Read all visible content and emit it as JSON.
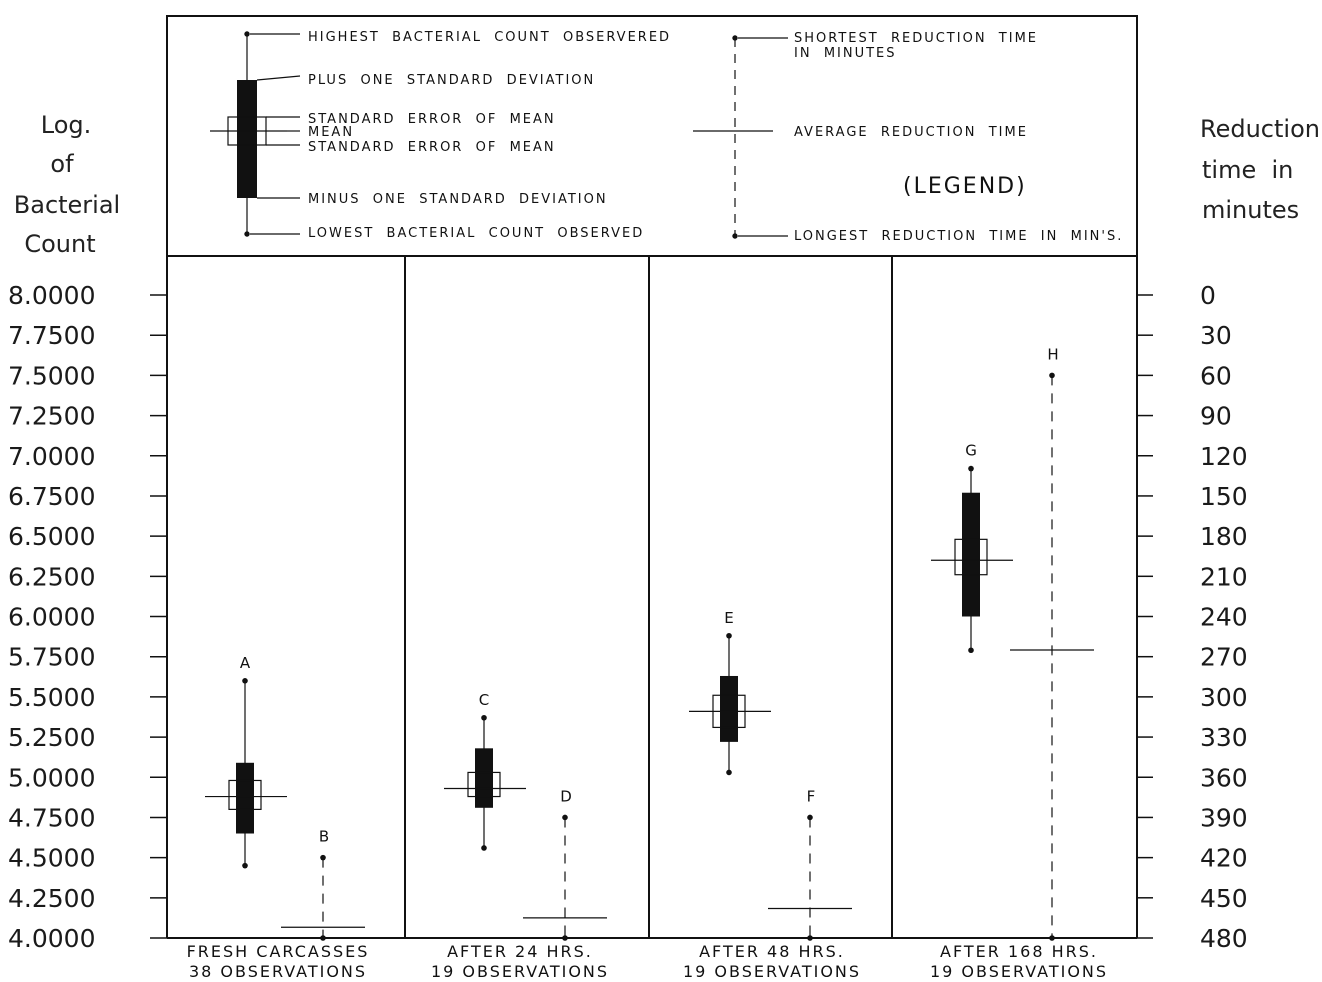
{
  "left_axis_title": [
    "Log.",
    "of",
    "Bacterial",
    "Count"
  ],
  "right_axis_title": [
    "Reduction",
    "time  in",
    "minutes"
  ],
  "legend": {
    "highest": "HIGHEST  BACTERIAL  COUNT  OBSERVERED",
    "plus_sd": "PLUS  ONE  STANDARD  DEVIATION",
    "se_upper": "STANDARD  ERROR  OF  MEAN",
    "mean": "MEAN",
    "se_lower": "STANDARD  ERROR  OF  MEAN",
    "minus_sd": "MINUS  ONE  STANDARD  DEVIATION",
    "lowest": "LOWEST  BACTERIAL  COUNT  OBSERVED",
    "shortest_1": "SHORTEST  REDUCTION  TIME",
    "shortest_2": "IN  MINUTES",
    "average": "AVERAGE  REDUCTION  TIME",
    "legend_word": "(LEGEND)",
    "longest": "LONGEST  REDUCTION  TIME  IN  MIN'S."
  },
  "chart_data": {
    "type": "boxplot",
    "left_axis": {
      "range": [
        4.0,
        8.0
      ],
      "ticks": [
        "8.0000",
        "7.7500",
        "7.5000",
        "7.2500",
        "7.0000",
        "6.7500",
        "6.5000",
        "6.2500",
        "6.0000",
        "5.7500",
        "5.5000",
        "5.2500",
        "5.0000",
        "4.7500",
        "4.5000",
        "4.2500",
        "4.0000"
      ]
    },
    "right_axis": {
      "range": [
        0,
        480
      ],
      "inverted": true,
      "ticks": [
        "0",
        "30",
        "60",
        "90",
        "120",
        "150",
        "180",
        "210",
        "240",
        "270",
        "300",
        "330",
        "360",
        "390",
        "420",
        "450",
        "480"
      ]
    },
    "groups": [
      {
        "label_line1": "FRESH  CARCASSES",
        "label_line2": "38  OBSERVATIONS",
        "bacterial": {
          "marker": "A",
          "max": 5.6,
          "plus_sd": 5.09,
          "se_upper": 4.98,
          "mean": 4.88,
          "se_lower": 4.8,
          "minus_sd": 4.65,
          "min": 4.45
        },
        "reduction": {
          "marker": "B",
          "shortest": 420,
          "average": 472,
          "longest": 480
        }
      },
      {
        "label_line1": "AFTER  24  HRS.",
        "label_line2": "19  OBSERVATIONS",
        "bacterial": {
          "marker": "C",
          "max": 5.37,
          "plus_sd": 5.18,
          "se_upper": 5.03,
          "mean": 4.93,
          "se_lower": 4.88,
          "minus_sd": 4.81,
          "min": 4.56
        },
        "reduction": {
          "marker": "D",
          "shortest": 390,
          "average": 465,
          "longest": 480
        }
      },
      {
        "label_line1": "AFTER  48  HRS.",
        "label_line2": "19  OBSERVATIONS",
        "bacterial": {
          "marker": "E",
          "max": 5.88,
          "plus_sd": 5.63,
          "se_upper": 5.51,
          "mean": 5.41,
          "se_lower": 5.31,
          "minus_sd": 5.22,
          "min": 5.03
        },
        "reduction": {
          "marker": "F",
          "shortest": 390,
          "average": 458,
          "longest": 480
        }
      },
      {
        "label_line1": "AFTER  168  HRS.",
        "label_line2": "19  OBSERVATIONS",
        "bacterial": {
          "marker": "G",
          "max": 6.92,
          "plus_sd": 6.77,
          "se_upper": 6.48,
          "mean": 6.35,
          "se_lower": 6.26,
          "minus_sd": 6.0,
          "min": 5.79
        },
        "reduction": {
          "marker": "H",
          "shortest": 60,
          "average": 265,
          "longest": 480
        }
      }
    ]
  }
}
